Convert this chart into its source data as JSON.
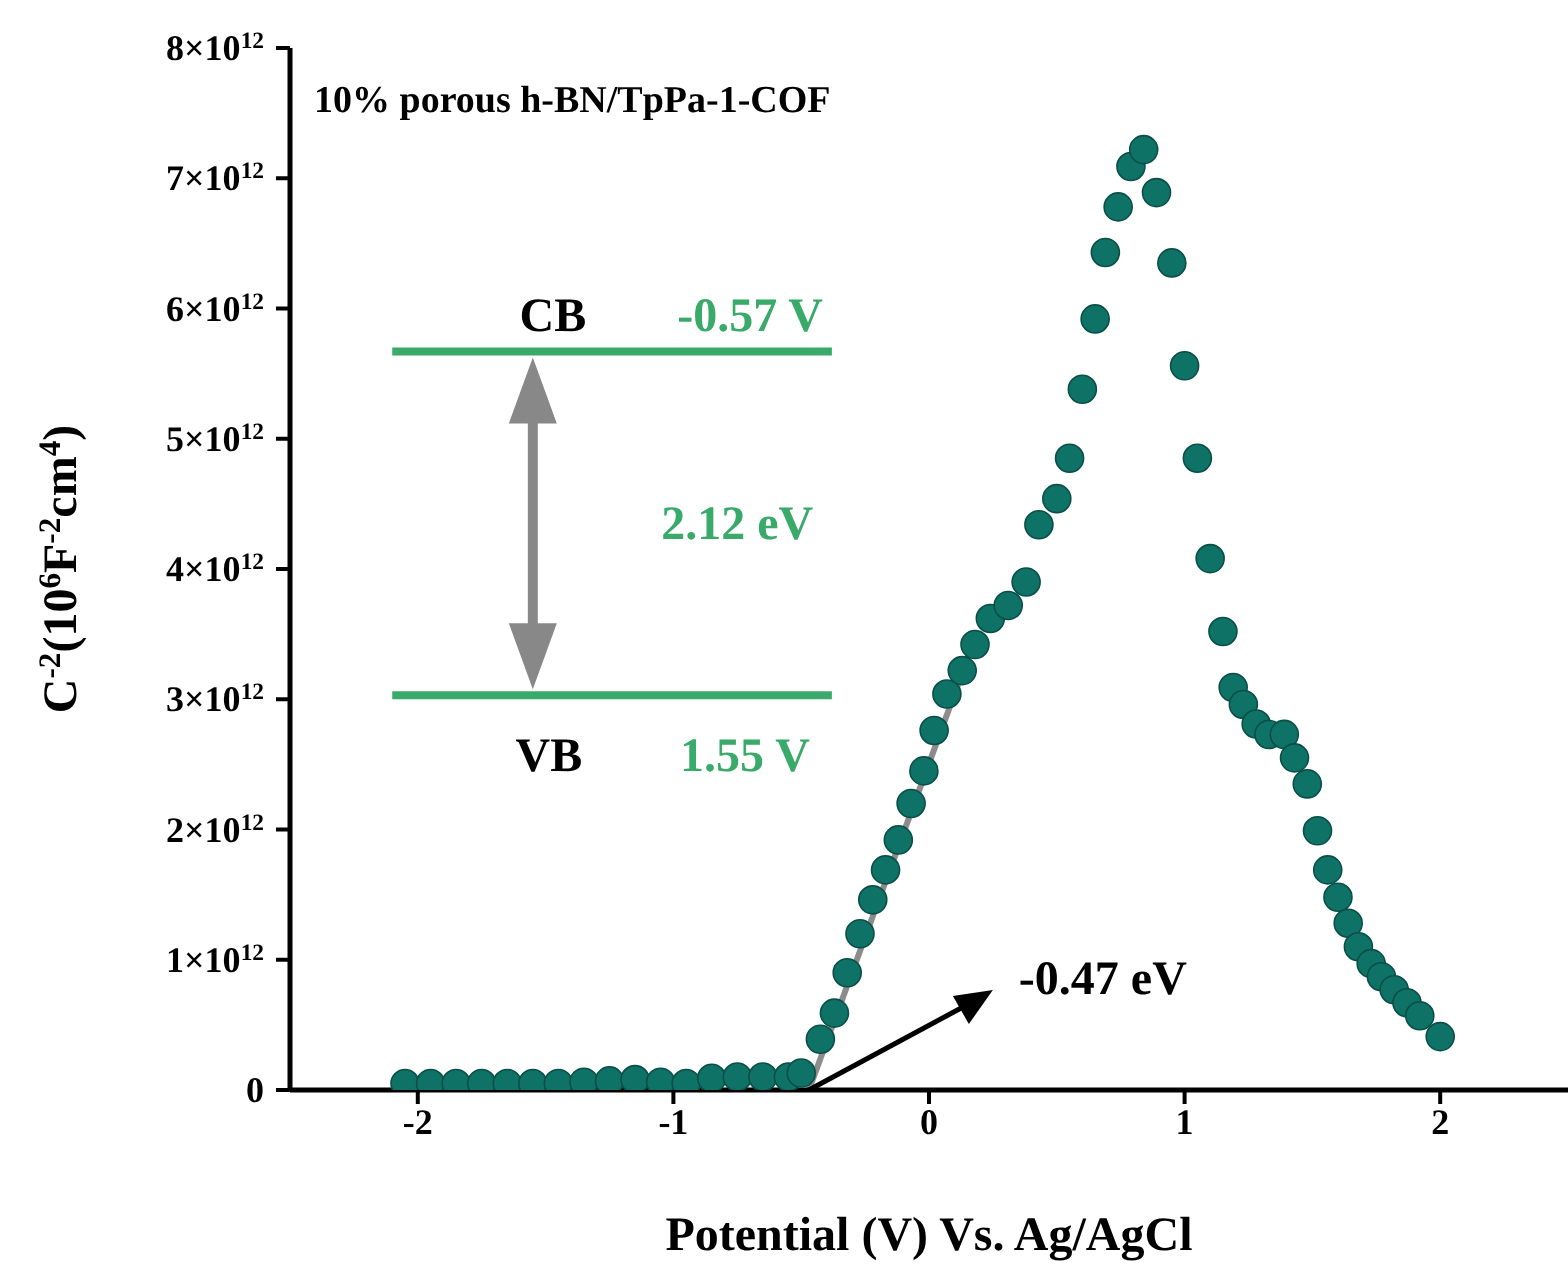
{
  "chart_data": {
    "type": "scatter",
    "title": "10% porous h-BN/TpPa-1-COF",
    "xlabel": "Potential (V) Vs. Ag/AgCl",
    "ylabel": "C$^{-2}$(10$^{6}$F$^{-2}$cm$^{4}$)",
    "annotations": [
      "CB",
      "-0.57 V",
      "2.12 eV",
      "VB",
      "1.55 V",
      {
        "text": "-0.47 eV",
        "x": -0.47,
        "y": 0
      }
    ],
    "xlim": [
      -2.5,
      2.5
    ],
    "xticks": [
      -2,
      -1,
      0,
      1,
      2
    ],
    "ylim": [
      0,
      8000000000000.0
    ],
    "yticks": [
      0,
      {
        "value": 1000000000000.0,
        "label": "1×10$^{12}$"
      },
      {
        "value": 2000000000000.0,
        "label": "2×10$^{12}$"
      },
      {
        "value": 3000000000000.0,
        "label": "3×10$^{12}$"
      },
      {
        "value": 4000000000000.0,
        "label": "4×10$^{12}$"
      },
      {
        "value": 5000000000000.0,
        "label": "5×10$^{12}$"
      },
      {
        "value": 6000000000000.0,
        "label": "6×10$^{12}$"
      },
      {
        "value": 7000000000000.0,
        "label": "7×10$^{12}$"
      },
      {
        "value": 8000000000000.0,
        "label": "8×10$^{12}$"
      }
    ],
    "marker": "none",
    "series": [
      {
        "marker": "circle",
        "color": "#0e7366",
        "x": [
          -2.05,
          -1.95,
          -1.85,
          -1.75,
          -1.65,
          -1.55,
          -1.45,
          -1.35,
          -1.25,
          -1.15,
          -1.05,
          -0.95,
          -0.85,
          -0.75,
          -0.65,
          -0.55,
          -0.5,
          -0.425,
          -0.37,
          -0.32,
          -0.27,
          -0.22,
          -0.17,
          -0.12,
          -0.07,
          -0.02,
          0.02,
          0.07,
          0.13,
          0.18,
          0.24,
          0.31,
          0.38,
          0.43,
          0.5,
          0.55,
          0.6,
          0.65,
          0.69,
          0.74,
          0.79,
          0.84,
          0.89,
          0.95,
          1.0,
          1.05,
          1.1,
          1.15,
          1.19,
          1.23,
          1.28,
          1.33,
          1.39,
          1.43,
          1.48,
          1.52,
          1.56,
          1.6,
          1.64,
          1.68,
          1.73,
          1.77,
          1.82,
          1.87,
          1.92,
          2.0
        ],
        "values": [
          50000000000.0,
          50000000000.0,
          50000000000.0,
          50000000000.0,
          50000000000.0,
          50000000000.0,
          50000000000.0,
          60000000000.0,
          70000000000.0,
          80000000000.0,
          60000000000.0,
          50000000000.0,
          90000000000.0,
          100000000000.0,
          100000000000.0,
          100000000000.0,
          130000000000.0,
          390000000000.0,
          590000000000.0,
          900000000000.0,
          1200000000000.0,
          1460000000000.0,
          1690000000000.0,
          1920000000000.0,
          2200000000000.0,
          2450000000000.0,
          2760000000000.0,
          3040000000000.0,
          3220000000000.0,
          3420000000000.0,
          3620000000000.0,
          3720000000000.0,
          3900000000000.0,
          4340000000000.0,
          4540000000000.0,
          4850000000000.0,
          5380000000000.0,
          5920000000000.0,
          6430000000000.0,
          6780000000000.0,
          7090000000000.0,
          7220000000000.0,
          6890000000000.0,
          6350000000000.0,
          5560000000000.0,
          4850000000000.0,
          4080000000000.0,
          3520000000000.0,
          3090000000000.0,
          2960000000000.0,
          2810000000000.0,
          2730000000000.0,
          2730000000000.0,
          2550000000000.0,
          2350000000000.0,
          1990000000000.0,
          1690000000000.0,
          1480000000000.0,
          1280000000000.0,
          1100000000000.0,
          970000000000.0,
          870000000000.0,
          770000000000.0,
          670000000000.0,
          570000000000.0,
          410000000000.0
        ]
      },
      {
        "type": "line",
        "color": "#8c8c8c",
        "x": [
          -0.47,
          0.16
        ],
        "values": [
          0,
          3360000000000.0
        ]
      }
    ]
  }
}
